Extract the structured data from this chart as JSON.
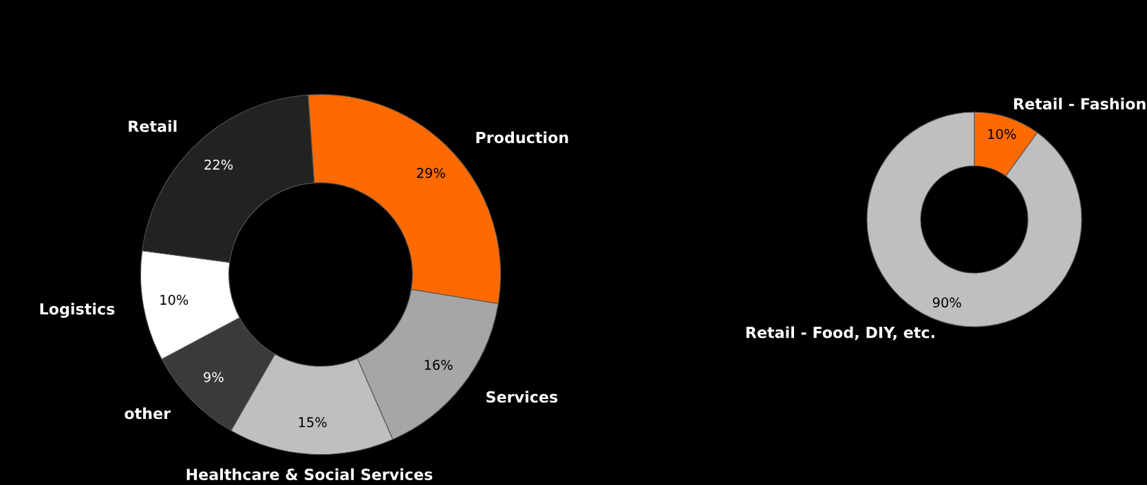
{
  "chart_data": [
    {
      "type": "donut",
      "categories": [
        "Production",
        "Services",
        "Healthcare & Social Services",
        "other",
        "Logistics",
        "Retail"
      ],
      "values": [
        29,
        16,
        15,
        9,
        10,
        22
      ],
      "colors": [
        "#ff6a00",
        "#a6a6a6",
        "#bfbfbf",
        "#3a3a3a",
        "#ffffff",
        "#222222"
      ],
      "value_labels": [
        "29%",
        "16%",
        "15%",
        "9%",
        "10%",
        "22%"
      ],
      "legend": false
    },
    {
      "type": "donut",
      "categories": [
        "Retail - Fashion",
        "Retail - Food, DIY, etc."
      ],
      "values": [
        10,
        90
      ],
      "colors": [
        "#ff6a00",
        "#bfbfbf"
      ],
      "value_labels": [
        "10%",
        "90%"
      ],
      "legend": false
    }
  ]
}
